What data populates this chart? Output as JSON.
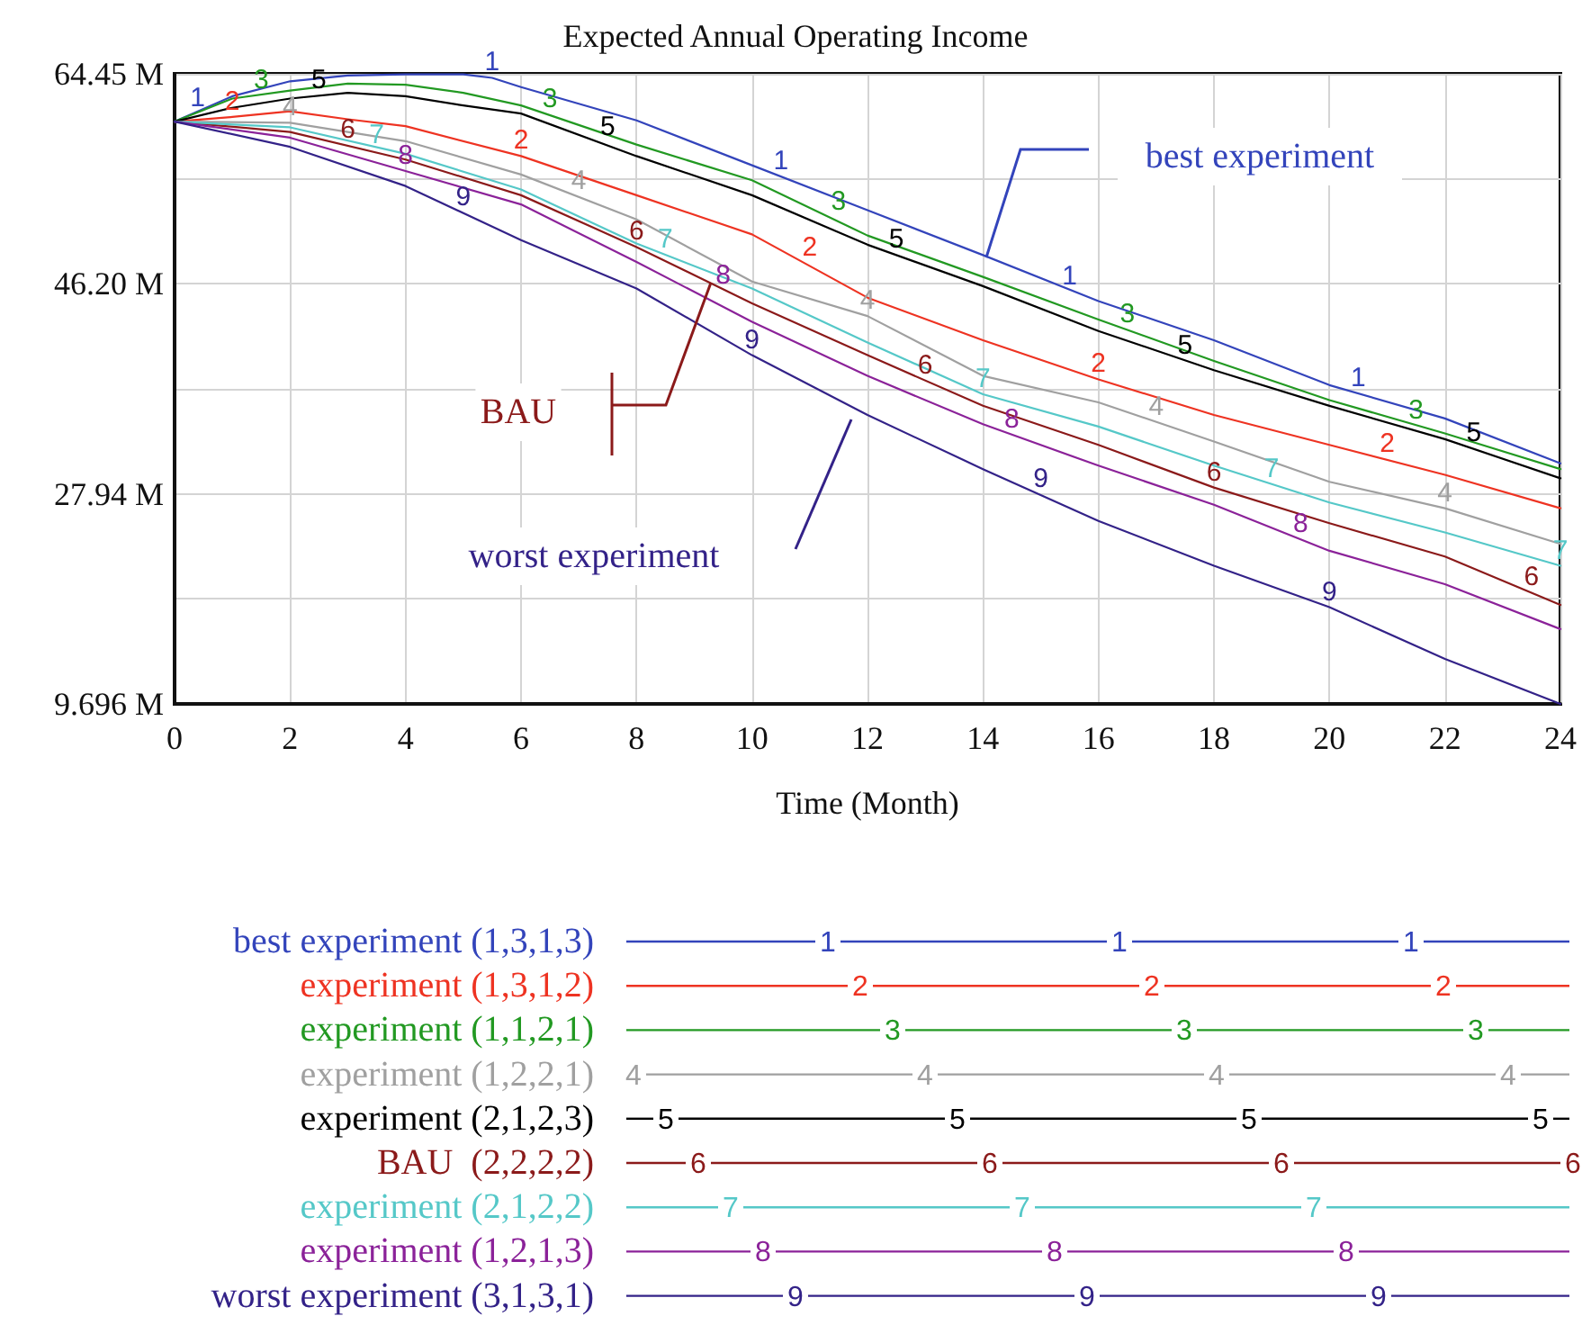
{
  "chart_data": {
    "type": "line",
    "title": "Expected Annual Operating Income",
    "xlabel": "Time (Month)",
    "xlim": [
      0,
      24
    ],
    "xticks": [
      0,
      2,
      4,
      6,
      8,
      10,
      12,
      14,
      16,
      18,
      20,
      22,
      24
    ],
    "ylim": [
      9.696,
      64.45
    ],
    "yticks": [
      {
        "value": 9.696,
        "label": "9.696 M"
      },
      {
        "value": 18.82,
        "label": null
      },
      {
        "value": 27.94,
        "label": "27.94 M"
      },
      {
        "value": 37.07,
        "label": null
      },
      {
        "value": 46.2,
        "label": "46.20 M"
      },
      {
        "value": 55.33,
        "label": null
      },
      {
        "value": 64.45,
        "label": "64.45 M"
      }
    ],
    "grid": true,
    "legend": "bottom",
    "marker": "none",
    "line_style": "solid",
    "series": [
      {
        "name": "best experiment (1,3,1,3)",
        "color": "#3344bb",
        "x": [
          0,
          1,
          2,
          3,
          4,
          5,
          5.5,
          6,
          8,
          10,
          12,
          14,
          16,
          18,
          20,
          22,
          24
        ],
        "values": [
          60.3,
          62.5,
          63.8,
          64.3,
          64.4,
          64.4,
          64.1,
          63.3,
          60.4,
          56.5,
          52.6,
          48.7,
          44.7,
          41.3,
          37.4,
          34.5,
          30.6
        ]
      },
      {
        "name": "experiment (1,3,1,2)",
        "color": "#ee3322",
        "x": [
          0,
          1,
          2,
          3,
          4,
          6,
          8,
          10,
          12,
          14,
          16,
          18,
          20,
          22,
          24
        ],
        "values": [
          60.3,
          60.7,
          61.2,
          60.5,
          59.9,
          57.3,
          53.9,
          50.5,
          45.0,
          41.3,
          37.9,
          34.8,
          32.2,
          29.6,
          26.7
        ]
      },
      {
        "name": "experiment (1,1,2,1)",
        "color": "#229922",
        "x": [
          0,
          1,
          2,
          3,
          4,
          5,
          6,
          8,
          10,
          12,
          14,
          16,
          18,
          20,
          22,
          24
        ],
        "values": [
          60.3,
          62.3,
          63.0,
          63.6,
          63.5,
          62.8,
          61.7,
          58.3,
          55.2,
          50.4,
          46.8,
          43.1,
          39.5,
          36.1,
          33.2,
          30.1
        ]
      },
      {
        "name": "experiment (1,2,2,1)",
        "color": "#a0a0a0",
        "x": [
          0,
          2,
          4,
          6,
          8,
          10,
          12,
          14,
          16,
          18,
          20,
          22,
          24
        ],
        "values": [
          60.3,
          60.2,
          58.6,
          55.7,
          51.8,
          46.4,
          43.4,
          38.2,
          35.9,
          32.5,
          29.0,
          26.7,
          23.6
        ]
      },
      {
        "name": "experiment (2,1,2,3)",
        "color": "#000000",
        "x": [
          0,
          1,
          2,
          3,
          4,
          5,
          6,
          8,
          10,
          12,
          14,
          16,
          18,
          20,
          22,
          24
        ],
        "values": [
          60.3,
          61.5,
          62.3,
          62.8,
          62.5,
          61.7,
          61.0,
          57.3,
          53.9,
          49.6,
          46.0,
          42.1,
          38.7,
          35.6,
          32.7,
          29.3
        ]
      },
      {
        "name": "BAU  (2,2,2,2)",
        "color": "#8b1a1a",
        "x": [
          0,
          2,
          4,
          6,
          8,
          10,
          12,
          14,
          16,
          18,
          20,
          22,
          24
        ],
        "values": [
          60.3,
          59.4,
          57.0,
          53.9,
          49.4,
          44.5,
          40.0,
          35.6,
          32.2,
          28.5,
          25.4,
          22.5,
          18.3
        ]
      },
      {
        "name": "experiment (2,1,2,2)",
        "color": "#55c8c8",
        "x": [
          0,
          2,
          4,
          6,
          8,
          10,
          12,
          14,
          16,
          18,
          20,
          22,
          24
        ],
        "values": [
          60.3,
          59.8,
          57.5,
          54.4,
          49.7,
          45.8,
          41.1,
          36.6,
          33.8,
          30.4,
          27.2,
          24.6,
          21.7
        ]
      },
      {
        "name": "experiment (1,2,1,3)",
        "color": "#8b2299",
        "x": [
          0,
          2,
          4,
          6,
          8,
          10,
          12,
          14,
          16,
          18,
          20,
          22,
          24
        ],
        "values": [
          60.3,
          58.9,
          56.0,
          53.1,
          48.1,
          42.9,
          38.2,
          34.0,
          30.4,
          27.0,
          23.0,
          20.1,
          16.2
        ]
      },
      {
        "name": "worst experiment (3,1,3,1)",
        "color": "#332288",
        "x": [
          0,
          2,
          4,
          6,
          8,
          10,
          12,
          14,
          16,
          18,
          20,
          22,
          24
        ],
        "values": [
          60.3,
          58.1,
          54.7,
          50.0,
          45.8,
          40.0,
          34.8,
          30.1,
          25.6,
          21.7,
          18.1,
          13.6,
          9.7
        ]
      }
    ],
    "annotations": [
      {
        "text": "1",
        "x": 0.4,
        "y": 61.0
      },
      {
        "text": "2",
        "x": 1.0,
        "y": 60.7
      },
      {
        "text": "3",
        "x": 1.5,
        "y": 62.6
      },
      {
        "text": "4",
        "x": 2.0,
        "y": 60.2
      },
      {
        "text": "5",
        "x": 2.5,
        "y": 62.6
      },
      {
        "text": "6",
        "x": 3.0,
        "y": 58.3
      },
      {
        "text": "7",
        "x": 3.5,
        "y": 57.8
      },
      {
        "text": "8",
        "x": 4.0,
        "y": 56.0
      },
      {
        "text": "9",
        "x": 5.0,
        "y": 52.4
      },
      {
        "text": "1",
        "x": 5.5,
        "y": 64.1
      },
      {
        "text": "1",
        "x": 10.5,
        "y": 55.5
      },
      {
        "text": "1",
        "x": 15.5,
        "y": 45.5
      },
      {
        "text": "1",
        "x": 20.5,
        "y": 36.7
      },
      {
        "text": "2",
        "x": 6.0,
        "y": 57.3
      },
      {
        "text": "2",
        "x": 11.0,
        "y": 48.0
      },
      {
        "text": "2",
        "x": 16.0,
        "y": 37.9
      },
      {
        "text": "2",
        "x": 21.0,
        "y": 31.0
      },
      {
        "text": "3",
        "x": 6.5,
        "y": 60.9
      },
      {
        "text": "3",
        "x": 11.5,
        "y": 52.0
      },
      {
        "text": "3",
        "x": 16.5,
        "y": 42.2
      },
      {
        "text": "3",
        "x": 21.5,
        "y": 33.9
      },
      {
        "text": "4",
        "x": 7.0,
        "y": 53.8
      },
      {
        "text": "4",
        "x": 12.0,
        "y": 43.4
      },
      {
        "text": "4",
        "x": 17.0,
        "y": 34.2
      },
      {
        "text": "4",
        "x": 22.0,
        "y": 26.7
      },
      {
        "text": "5",
        "x": 7.5,
        "y": 58.5
      },
      {
        "text": "5",
        "x": 12.5,
        "y": 48.7
      },
      {
        "text": "5",
        "x": 17.5,
        "y": 39.5
      },
      {
        "text": "5",
        "x": 22.5,
        "y": 31.9
      },
      {
        "text": "6",
        "x": 8.0,
        "y": 49.4
      },
      {
        "text": "6",
        "x": 13.0,
        "y": 37.8
      },
      {
        "text": "6",
        "x": 18.0,
        "y": 28.5
      },
      {
        "text": "6",
        "x": 23.5,
        "y": 19.4
      },
      {
        "text": "7",
        "x": 8.5,
        "y": 48.7
      },
      {
        "text": "7",
        "x": 14.0,
        "y": 36.6
      },
      {
        "text": "7",
        "x": 19.0,
        "y": 28.8
      },
      {
        "text": "7",
        "x": 24.0,
        "y": 21.7
      },
      {
        "text": "8",
        "x": 9.5,
        "y": 45.6
      },
      {
        "text": "8",
        "x": 14.5,
        "y": 33.1
      },
      {
        "text": "8",
        "x": 19.5,
        "y": 24.0
      },
      {
        "text": "9",
        "x": 10.0,
        "y": 40.0
      },
      {
        "text": "9",
        "x": 15.0,
        "y": 27.9
      },
      {
        "text": "9",
        "x": 20.0,
        "y": 18.1
      },
      "best experiment",
      "BAU",
      "worst experiment"
    ]
  }
}
